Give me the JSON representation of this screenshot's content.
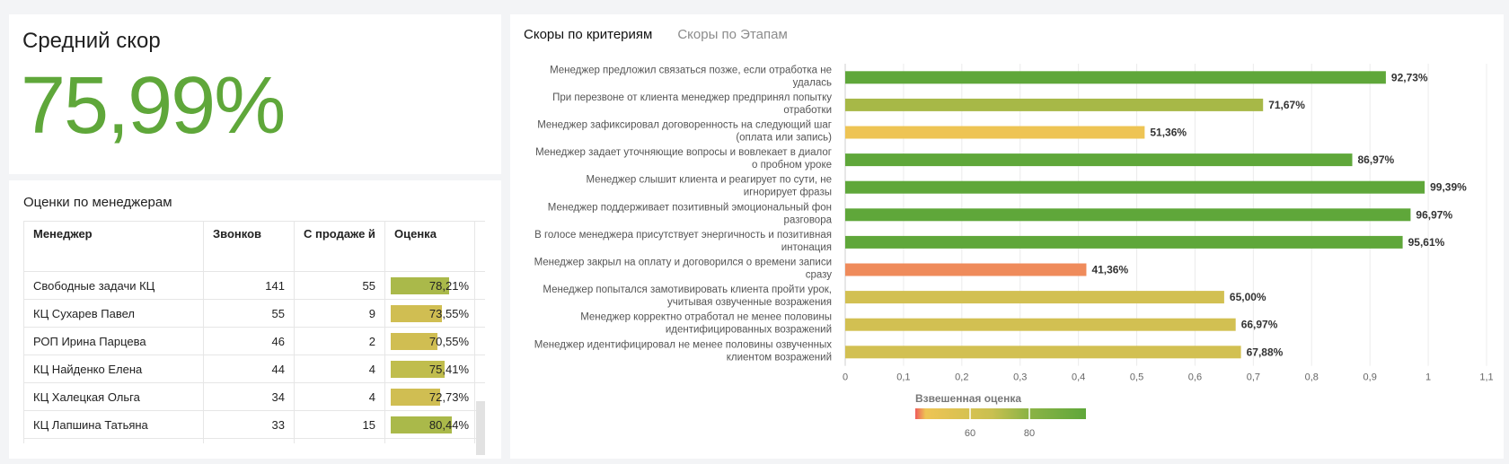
{
  "score_card": {
    "title": "Средний скор",
    "value": "75,99%"
  },
  "managers": {
    "title": "Оценки по менеджерам",
    "columns": [
      "Менеджер",
      "Звонков",
      "С продаже й",
      "Оценка"
    ],
    "rows": [
      {
        "name": "Свободные задачи КЦ",
        "calls": "141",
        "sales": "55",
        "score": "78,21%",
        "score_value": 78.21
      },
      {
        "name": "КЦ Сухарев Павел",
        "calls": "55",
        "sales": "9",
        "score": "73,55%",
        "score_value": 73.55
      },
      {
        "name": "РОП Ирина Парцева",
        "calls": "46",
        "sales": "2",
        "score": "70,55%",
        "score_value": 70.55
      },
      {
        "name": "КЦ Найденко Елена",
        "calls": "44",
        "sales": "4",
        "score": "75,41%",
        "score_value": 75.41
      },
      {
        "name": "КЦ Халецкая Ольга",
        "calls": "34",
        "sales": "4",
        "score": "72,73%",
        "score_value": 72.73
      },
      {
        "name": "КЦ Лапшина Татьяна",
        "calls": "33",
        "sales": "15",
        "score": "80,44%",
        "score_value": 80.44
      }
    ]
  },
  "criteria_card": {
    "tabs": [
      "Скоры по критериям",
      "Скоры по Этапам"
    ],
    "legend_title": "Взвешенная оценка",
    "legend_ticks": [
      "60",
      "80"
    ]
  },
  "chart_data": {
    "type": "bar",
    "orientation": "horizontal",
    "categories": [
      "Менеджер предложил связаться позже, если отработка не удалась",
      "При перезвоне от клиента менеджер предпринял попытку отработки",
      "Менеджер зафиксировал договоренность на следующий шаг (оплата или запись)",
      "Менеджер задает уточняющие вопросы и вовлекает в диалог о пробном уроке",
      "Менеджер слышит клиента и реагирует по сути, не игнорирует фразы",
      "Менеджер поддерживает позитивный эмоциональный фон разговора",
      "В голосе менеджера присутствует энергичность и позитивная интонация",
      "Менеджер закрыл на оплату и договорился о времени записи сразу",
      "Менеджер попытался замотивировать клиента пройти урок, учитывая озвученные возражения",
      "Менеджер корректно отработал не менее половины идентифицированных возражений",
      "Менеджер идентифицировал не менее половины озвученных клиентом возражений"
    ],
    "category_lines": [
      [
        "Менеджер предложил связаться позже, если отработка не",
        "удалась"
      ],
      [
        "При перезвоне от клиента менеджер предпринял попытку",
        "отработки"
      ],
      [
        "Менеджер зафиксировал договоренность на следующий шаг",
        "(оплата или запись)"
      ],
      [
        "Менеджер задает уточняющие вопросы и вовлекает в диалог",
        "о пробном уроке"
      ],
      [
        "Менеджер слышит клиента и реагирует по сути, не",
        "игнорирует фразы"
      ],
      [
        "Менеджер поддерживает позитивный эмоциональный фон",
        "разговора"
      ],
      [
        "В голосе менеджера присутствует энергичность и позитивная",
        "интонация"
      ],
      [
        "Менеджер закрыл на оплату и договорился о времени записи",
        "сразу"
      ],
      [
        "Менеджер попытался замотивировать клиента пройти урок,",
        "учитывая озвученные возражения"
      ],
      [
        "Менеджер корректно отработал не менее половины",
        "идентифицированных возражений"
      ],
      [
        "Менеджер идентифицировал не менее половины озвученных",
        "клиентом возражений"
      ]
    ],
    "values": [
      0.9273,
      0.7167,
      0.5136,
      0.8697,
      0.9939,
      0.9697,
      0.9561,
      0.4136,
      0.65,
      0.6697,
      0.6788
    ],
    "labels": [
      "92,73%",
      "71,67%",
      "51,36%",
      "86,97%",
      "99,39%",
      "96,97%",
      "95,61%",
      "41,36%",
      "65,00%",
      "66,97%",
      "67,88%"
    ],
    "xlim": [
      0,
      1.1
    ],
    "x_ticks": [
      "0",
      "0,1",
      "0,2",
      "0,3",
      "0,4",
      "0,5",
      "0,6",
      "0,7",
      "0,8",
      "0,9",
      "1",
      "1,1"
    ],
    "grid": true,
    "colors": {
      "high": "#5fa73a",
      "mid_high": "#a7b847",
      "mid": "#d2c052",
      "low_mid": "#eec454",
      "low": "#ef8b5b"
    }
  }
}
